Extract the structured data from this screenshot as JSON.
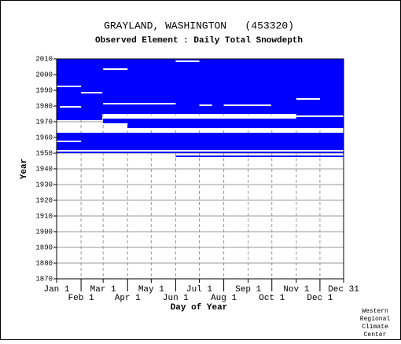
{
  "chart_data": {
    "type": "coverage",
    "title": "GRAYLAND, WASHINGTON   (453320)",
    "subtitle": "Observed Element : Daily Total Snowdepth",
    "xlabel": "Day of Year",
    "ylabel": "Year",
    "credit": [
      "Western",
      "Regional",
      "Climate",
      "Center"
    ],
    "color": "#0000ff",
    "gap_color": "#ffffff",
    "xlim": [
      1,
      365
    ],
    "ylim": [
      1870,
      2010
    ],
    "xticks": [
      {
        "value": 1,
        "label": "Jan 1"
      },
      {
        "value": 32,
        "label": "Feb 1"
      },
      {
        "value": 60,
        "label": "Mar 1"
      },
      {
        "value": 91,
        "label": "Apr 1"
      },
      {
        "value": 121,
        "label": "May 1"
      },
      {
        "value": 152,
        "label": "Jun 1"
      },
      {
        "value": 182,
        "label": "Jul 1"
      },
      {
        "value": 213,
        "label": "Aug 1"
      },
      {
        "value": 244,
        "label": "Sep 1"
      },
      {
        "value": 274,
        "label": "Oct 1"
      },
      {
        "value": 305,
        "label": "Nov 1"
      },
      {
        "value": 335,
        "label": "Dec 1"
      },
      {
        "value": 365,
        "label": "Dec 31"
      }
    ],
    "yticks": [
      1870,
      1880,
      1890,
      1900,
      1910,
      1920,
      1930,
      1940,
      1950,
      1960,
      1970,
      1980,
      1990,
      2000,
      2010
    ],
    "grid": true,
    "blocks": [
      {
        "years": [
          1975,
          2010
        ],
        "days": [
          1,
          365
        ]
      },
      {
        "years": [
          1971,
          1975
        ],
        "days": [
          1,
          59
        ]
      },
      {
        "years": [
          1969,
          1972
        ],
        "days": [
          60,
          365
        ]
      },
      {
        "years": [
          1966,
          1969
        ],
        "days": [
          91,
          365
        ]
      },
      {
        "years": [
          1971,
          1975
        ],
        "days": [
          305,
          365
        ]
      },
      {
        "years": [
          1952,
          1963
        ],
        "days": [
          1,
          365
        ]
      },
      {
        "years": [
          1950,
          1951
        ],
        "days": [
          1,
          365
        ]
      },
      {
        "years": [
          1947.5,
          1948.5
        ],
        "days": [
          152,
          365
        ]
      }
    ],
    "gaps": [
      {
        "years": [
          1981,
          1982
        ],
        "days": [
          60,
          152
        ]
      },
      {
        "years": [
          2008,
          2009
        ],
        "days": [
          152,
          182
        ]
      },
      {
        "years": [
          1980,
          1981
        ],
        "days": [
          182,
          198
        ]
      },
      {
        "years": [
          1980,
          1981
        ],
        "days": [
          213,
          273
        ]
      },
      {
        "years": [
          1992,
          1993
        ],
        "days": [
          1,
          32
        ]
      },
      {
        "years": [
          1988,
          1989
        ],
        "days": [
          32,
          59
        ]
      },
      {
        "years": [
          2003,
          2004
        ],
        "days": [
          60,
          91
        ]
      },
      {
        "years": [
          1984,
          1985
        ],
        "days": [
          305,
          335
        ]
      },
      {
        "years": [
          1979,
          1980
        ],
        "days": [
          5,
          32
        ]
      },
      {
        "years": [
          1957,
          1958
        ],
        "days": [
          1,
          32
        ]
      },
      {
        "years": [
          1973,
          1974
        ],
        "days": [
          60,
          365
        ]
      },
      {
        "years": [
          1964,
          1966
        ],
        "days": [
          1,
          91
        ]
      }
    ]
  }
}
